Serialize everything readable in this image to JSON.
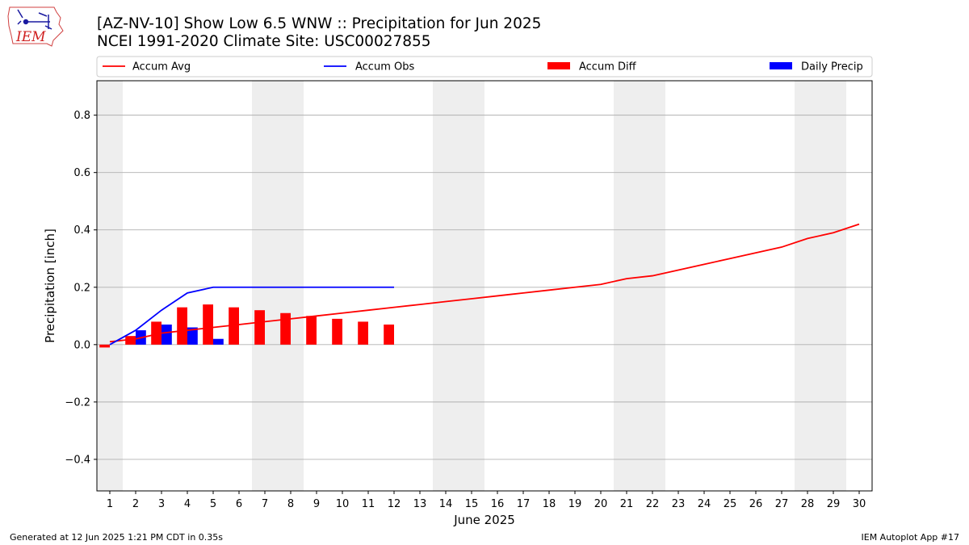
{
  "logo": {
    "text": "IEM"
  },
  "footer": {
    "left": "Generated at 12 Jun 2025 1:21 PM CDT in 0.35s",
    "right": "IEM Autoplot App #17"
  },
  "chart_data": {
    "type": "bar",
    "title": "[AZ-NV-10] Show Low 6.5 WNW :: Precipitation for Jun 2025",
    "subtitle": "NCEI 1991-2020 Climate Site: USC00027855",
    "xlabel": "June 2025",
    "ylabel": "Precipitation [inch]",
    "xlim": [
      0.5,
      30.5
    ],
    "ylim": [
      -0.51,
      0.92
    ],
    "yticks": [
      -0.4,
      -0.2,
      0.0,
      0.2,
      0.4,
      0.6,
      0.8
    ],
    "ytick_labels": [
      "−0.4",
      "−0.2",
      "0.0",
      "0.2",
      "0.4",
      "0.6",
      "0.8"
    ],
    "x": [
      1,
      2,
      3,
      4,
      5,
      6,
      7,
      8,
      9,
      10,
      11,
      12,
      13,
      14,
      15,
      16,
      17,
      18,
      19,
      20,
      21,
      22,
      23,
      24,
      25,
      26,
      27,
      28,
      29,
      30
    ],
    "grid": "horizontal",
    "legend": "top, single row above plot",
    "weekend_shading": [
      [
        0.5,
        1.5
      ],
      [
        6.5,
        8.5
      ],
      [
        13.5,
        15.5
      ],
      [
        20.5,
        22.5
      ],
      [
        27.5,
        29.5
      ]
    ],
    "colors": {
      "accum_avg": "#ff0000",
      "accum_obs": "#0000ff",
      "accum_diff": "#ff0000",
      "daily_precip": "#0000ff",
      "weekend": "#eeeeee",
      "grid": "#b0b0b0"
    },
    "series": [
      {
        "name": "Accum Avg",
        "kind": "line",
        "x": [
          1,
          2,
          3,
          4,
          5,
          6,
          7,
          8,
          9,
          10,
          11,
          12,
          13,
          14,
          15,
          16,
          17,
          18,
          19,
          20,
          21,
          22,
          23,
          24,
          25,
          26,
          27,
          28,
          29,
          30
        ],
        "values": [
          0.01,
          0.02,
          0.04,
          0.05,
          0.06,
          0.07,
          0.08,
          0.09,
          0.1,
          0.11,
          0.12,
          0.13,
          0.14,
          0.15,
          0.16,
          0.17,
          0.18,
          0.19,
          0.2,
          0.21,
          0.23,
          0.24,
          0.26,
          0.28,
          0.3,
          0.32,
          0.34,
          0.37,
          0.39,
          0.42
        ]
      },
      {
        "name": "Accum Obs",
        "kind": "line",
        "x": [
          1,
          2,
          3,
          4,
          5,
          6,
          7,
          8,
          9,
          10,
          11,
          12
        ],
        "values": [
          0.0,
          0.05,
          0.12,
          0.18,
          0.2,
          0.2,
          0.2,
          0.2,
          0.2,
          0.2,
          0.2,
          0.2
        ]
      },
      {
        "name": "Accum Diff",
        "kind": "bar",
        "x": [
          1,
          2,
          3,
          4,
          5,
          6,
          7,
          8,
          9,
          10,
          11,
          12
        ],
        "values": [
          -0.01,
          0.03,
          0.08,
          0.13,
          0.14,
          0.13,
          0.12,
          0.11,
          0.1,
          0.09,
          0.08,
          0.07
        ]
      },
      {
        "name": "Daily Precip",
        "kind": "bar",
        "x": [
          1,
          2,
          3,
          4,
          5,
          6,
          7,
          8,
          9,
          10,
          11,
          12
        ],
        "values": [
          0.0,
          0.05,
          0.07,
          0.06,
          0.02,
          0.0,
          0.0,
          0.0,
          0.0,
          0.0,
          0.0,
          0.0
        ]
      }
    ]
  }
}
